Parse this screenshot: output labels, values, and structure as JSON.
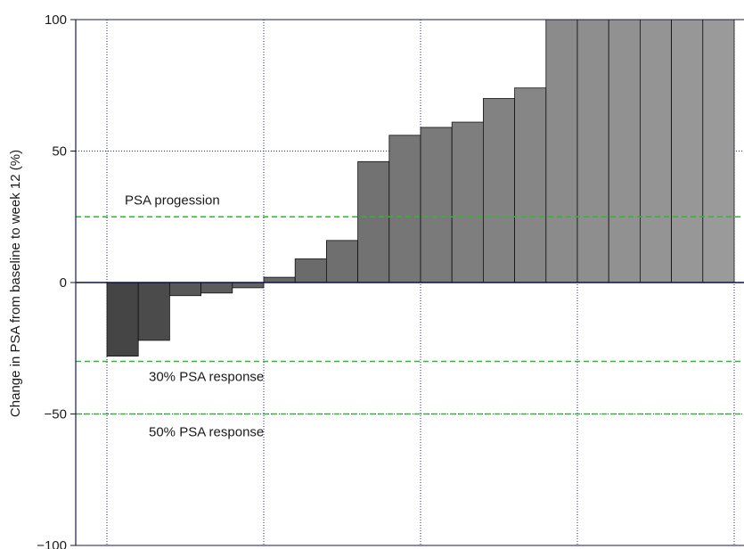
{
  "chart_data": {
    "type": "bar",
    "title": "",
    "xlabel": "",
    "ylabel": "Change in PSA from baseline to week 12 (%)",
    "ylim": [
      -100,
      100
    ],
    "yticks": [
      100,
      50,
      0,
      -50,
      -100
    ],
    "ytick_labels": [
      "100",
      "50",
      "0",
      "−50",
      "−100"
    ],
    "grid": true,
    "values": [
      -28,
      -22,
      -5,
      -4,
      -2,
      2,
      9,
      16,
      46,
      56,
      59,
      61,
      70,
      74,
      100,
      100,
      100,
      100,
      100,
      100
    ],
    "bar_colors": [
      "#454545",
      "#4b4b4b",
      "#575757",
      "#5c5c5c",
      "#626262",
      "#686868",
      "#6b6b6b",
      "#6f6f6f",
      "#727272",
      "#767676",
      "#7a7a7a",
      "#7e7e7e",
      "#828282",
      "#868686",
      "#8b8b8b",
      "#8e8e8e",
      "#919191",
      "#949494",
      "#979797",
      "#9a9a9a"
    ],
    "reference_lines": [
      {
        "value": 25,
        "label": "PSA progession",
        "color": "#2db82d"
      },
      {
        "value": -30,
        "label": "30% PSA response",
        "color": "#2db82d"
      },
      {
        "value": -50,
        "label": "50% PSA response",
        "color": "#2db82d"
      }
    ]
  }
}
